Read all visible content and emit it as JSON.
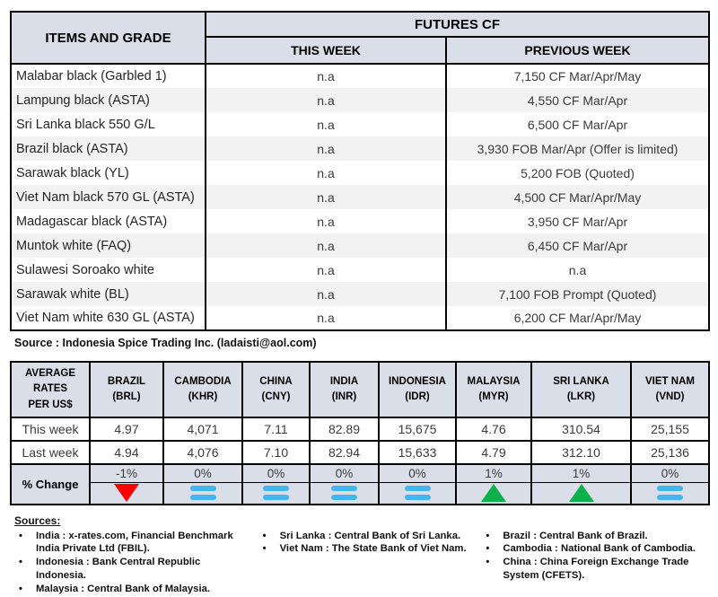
{
  "futures_table": {
    "col_items_header": "ITEMS AND GRADE",
    "col_futures_header": "FUTURES CF",
    "col_this_week": "THIS WEEK",
    "col_previous_week": "PREVIOUS WEEK",
    "rows": [
      {
        "item": "Malabar black (Garbled 1)",
        "this_week": "n.a",
        "previous_week": "7,150 CF Mar/Apr/May"
      },
      {
        "item": "Lampung black (ASTA)",
        "this_week": "n.a",
        "previous_week": "4,550 CF Mar/Apr"
      },
      {
        "item": "Sri Lanka black 550 G/L",
        "this_week": "n.a",
        "previous_week": "6,500 CF Mar/Apr"
      },
      {
        "item": "Brazil black (ASTA)",
        "this_week": "n.a",
        "previous_week": "3,930 FOB Mar/Apr (Offer is limited)"
      },
      {
        "item": "Sarawak black (YL)",
        "this_week": "n.a",
        "previous_week": "5,200 FOB (Quoted)"
      },
      {
        "item": "Viet Nam black 570 GL (ASTA)",
        "this_week": "n.a",
        "previous_week": "4,500 CF Mar/Apr/May"
      },
      {
        "item": "Madagascar black (ASTA)",
        "this_week": "n.a",
        "previous_week": "3,950 CF Mar/Apr"
      },
      {
        "item": "Muntok white (FAQ)",
        "this_week": "n.a",
        "previous_week": "6,450 CF Mar/Apr"
      },
      {
        "item": "Sulawesi Soroako white",
        "this_week": "n.a",
        "previous_week": "n.a"
      },
      {
        "item": "Sarawak  white (BL)",
        "this_week": "n.a",
        "previous_week": "7,100 FOB Prompt (Quoted)"
      },
      {
        "item": "Viet Nam white 630 GL (ASTA)",
        "this_week": "n.a",
        "previous_week": "6,200 CF Mar/Apr/May"
      }
    ],
    "source_note": "Source : Indonesia Spice Trading Inc. (ladaisti@aol.com)"
  },
  "rates_table": {
    "corner_header": "AVERAGE\nRATES\nPER US$",
    "row_labels": {
      "this_week": "This week",
      "last_week": "Last week",
      "pct_change": "% Change"
    },
    "columns": [
      {
        "country": "BRAZIL",
        "currency": "(BRL)",
        "this_week": "4.97",
        "last_week": "4.94",
        "pct_change": "-1%",
        "direction": "down"
      },
      {
        "country": "CAMBODIA",
        "currency": "(KHR)",
        "this_week": "4,071",
        "last_week": "4,076",
        "pct_change": "0%",
        "direction": "equal"
      },
      {
        "country": "CHINA",
        "currency": "(CNY)",
        "this_week": "7.11",
        "last_week": "7.10",
        "pct_change": "0%",
        "direction": "equal"
      },
      {
        "country": "INDIA",
        "currency": "(INR)",
        "this_week": "82.89",
        "last_week": "82.94",
        "pct_change": "0%",
        "direction": "equal"
      },
      {
        "country": "INDONESIA",
        "currency": "(IDR)",
        "this_week": "15,675",
        "last_week": "15,633",
        "pct_change": "0%",
        "direction": "equal"
      },
      {
        "country": "MALAYSIA",
        "currency": "(MYR)",
        "this_week": "4.76",
        "last_week": "4.79",
        "pct_change": "1%",
        "direction": "up"
      },
      {
        "country": "SRI LANKA",
        "currency": "(LKR)",
        "this_week": "310.54",
        "last_week": "312.10",
        "pct_change": "1%",
        "direction": "up"
      },
      {
        "country": "VIET NAM",
        "currency": "(VND)",
        "this_week": "25,155",
        "last_week": "25,136",
        "pct_change": "0%",
        "direction": "equal"
      }
    ]
  },
  "sources": {
    "heading": "Sources:",
    "columns": [
      [
        "India : x-rates.com, Financial Benchmark India Private Ltd (FBIL).",
        "Indonesia : Bank Central Republic Indonesia.",
        "Malaysia : Central Bank of Malaysia."
      ],
      [
        "Sri Lanka : Central Bank of Sri Lanka.",
        "Viet Nam : The State Bank of Viet Nam."
      ],
      [
        "Brazil :  Central Bank of Brazil.",
        "Cambodia : National Bank of Cambodia.",
        "China : China Foreign Exchange Trade System (CFETS)."
      ]
    ]
  },
  "colors": {
    "header_bg": "#d9dee8",
    "row_alt_bg": "#f2f2f2",
    "down_red": "#fe0000",
    "up_green": "#0db04b",
    "equal_blue": "#45b5ef"
  }
}
